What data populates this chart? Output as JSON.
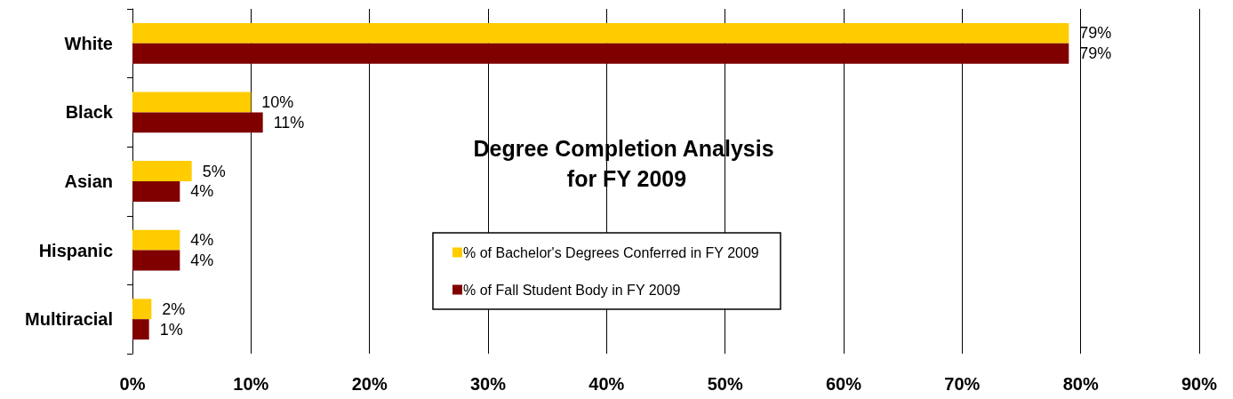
{
  "chart_data": {
    "type": "bar",
    "orientation": "horizontal",
    "title": "Degree Completion Analysis for FY 2009",
    "categories": [
      "White",
      "Black",
      "Asian",
      "Hispanic",
      "Multiracial"
    ],
    "series": [
      {
        "name": "% of Bachelor's Degrees Conferred in FY 2009",
        "color": "#ffcc00",
        "values": [
          79,
          10,
          5,
          4,
          1.6
        ],
        "value_labels": [
          "79%",
          "10%",
          "5%",
          "4%",
          "2%"
        ]
      },
      {
        "name": "% of Fall Student Body in FY 2009",
        "color": "#800000",
        "values": [
          79,
          11,
          4,
          4,
          1.4
        ],
        "value_labels": [
          "79%",
          "11%",
          "4%",
          "4%",
          "1%"
        ]
      }
    ],
    "xlim": [
      0,
      90
    ],
    "xticks": [
      {
        "value": 0,
        "label": "0%"
      },
      {
        "value": 10,
        "label": "10%"
      },
      {
        "value": 20,
        "label": "20%"
      },
      {
        "value": 30,
        "label": "30%"
      },
      {
        "value": 40,
        "label": "40%"
      },
      {
        "value": 50,
        "label": "50%"
      },
      {
        "value": 60,
        "label": "60%"
      },
      {
        "value": 70,
        "label": "70%"
      },
      {
        "value": 80,
        "label": "80%"
      },
      {
        "value": 90,
        "label": "90%"
      }
    ],
    "grid": "x",
    "legend": "bottom"
  }
}
